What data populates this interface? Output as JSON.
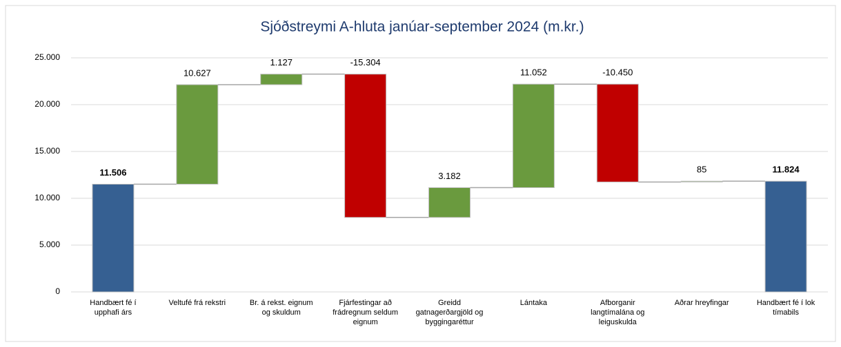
{
  "chart_data": {
    "type": "waterfall",
    "title": "Sjóðstreymi A-hluta janúar-september 2024 (m.kr.)",
    "categories": [
      [
        "Handbært fé í",
        "upphafi árs"
      ],
      [
        "Veltufé frá rekstri"
      ],
      [
        "Br. á rekst. eignum",
        "og skuldum"
      ],
      [
        "Fjárfestingar að",
        "frádregnum seldum",
        "eignum"
      ],
      [
        "Greidd",
        "gatnagerðargjöld og",
        "byggingaréttur"
      ],
      [
        "Lántaka"
      ],
      [
        "Afborganir",
        "langtímalána og",
        "leiguskulda"
      ],
      [
        "Aðrar hreyfingar"
      ],
      [
        "Handbært fé í lok",
        "tímabils"
      ]
    ],
    "measures": [
      "total",
      "relative",
      "relative",
      "relative",
      "relative",
      "relative",
      "relative",
      "relative",
      "total"
    ],
    "values": [
      11506,
      10627,
      1127,
      -15304,
      3182,
      11052,
      -10450,
      85,
      11824
    ],
    "value_labels": [
      "11.506",
      "10.627",
      "1.127",
      "-15.304",
      "3.182",
      "11.052",
      "-10.450",
      "85",
      "11.824"
    ],
    "colors": {
      "total": "#366092",
      "increase": "#6a9a3e",
      "decrease": "#c00000"
    },
    "ylim": [
      0,
      25000
    ],
    "yticks": [
      0,
      {
        "value": 5000,
        "label": "5.000"
      },
      {
        "value": 10000,
        "label": "10.000"
      },
      {
        "value": 15000,
        "label": "15.000"
      },
      {
        "value": 20000,
        "label": "20.000"
      },
      {
        "value": 25000,
        "label": "25.000"
      }
    ],
    "grid": true
  }
}
